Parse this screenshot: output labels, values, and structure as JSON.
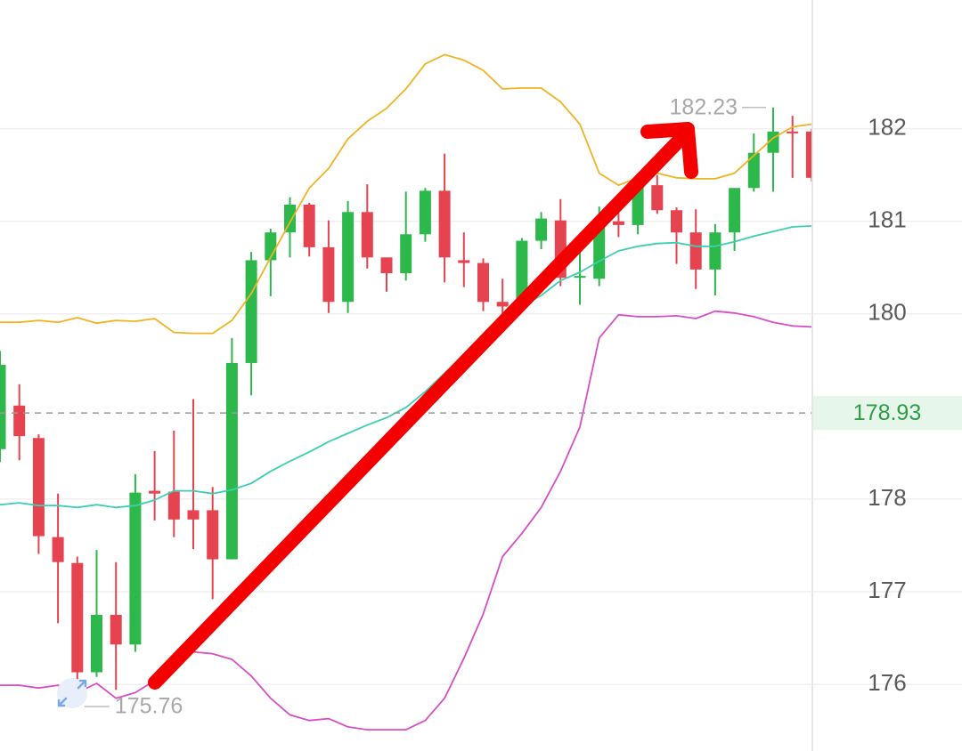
{
  "chart_data": {
    "type": "candlestick",
    "ylim": [
      175.28,
      183.39
    ],
    "yticks": [
      176,
      177,
      178,
      180,
      181,
      182
    ],
    "grid": true,
    "up_color": "#2db84c",
    "down_color": "#e5434f",
    "candles": {
      "open": [
        178.54,
        179.01,
        178.66,
        177.59,
        177.31,
        176.13,
        176.75,
        176.43,
        178.09,
        178.08,
        177.88,
        177.88,
        177.35,
        179.47,
        180.58,
        180.88,
        181.18,
        180.72,
        180.13,
        181.1,
        180.61,
        180.44,
        180.86,
        181.33,
        180.58,
        180.55,
        180.13,
        180.08,
        180.79,
        181.01,
        180.39,
        180.38,
        181.0,
        180.96,
        181.39,
        181.12,
        180.88,
        180.48,
        180.88,
        181.36,
        181.74,
        181.97,
        181.97
      ],
      "high": [
        179.6,
        179.24,
        178.7,
        178.06,
        177.38,
        177.45,
        177.32,
        178.27,
        178.52,
        178.74,
        179.08,
        178.13,
        179.74,
        180.67,
        180.92,
        181.26,
        181.2,
        181.01,
        181.22,
        181.4,
        180.61,
        181.32,
        181.36,
        181.73,
        180.88,
        180.6,
        180.38,
        180.82,
        181.1,
        181.24,
        180.7,
        181.16,
        181.13,
        181.47,
        181.5,
        181.15,
        181.13,
        180.97,
        181.36,
        181.95,
        182.23,
        182.14,
        182.0
      ],
      "low": [
        178.4,
        178.42,
        177.41,
        176.66,
        175.76,
        176.08,
        175.94,
        176.35,
        177.77,
        177.59,
        177.46,
        176.92,
        177.35,
        179.12,
        180.19,
        180.61,
        180.62,
        180.01,
        180.01,
        180.49,
        180.24,
        180.36,
        180.78,
        180.34,
        180.29,
        180.03,
        179.82,
        180.05,
        180.7,
        180.3,
        180.1,
        180.3,
        180.83,
        180.86,
        181.08,
        180.54,
        180.27,
        180.2,
        180.68,
        181.32,
        181.32,
        181.47,
        181.43
      ],
      "close": [
        179.45,
        178.68,
        177.6,
        177.32,
        176.13,
        176.75,
        176.43,
        178.07,
        178.06,
        177.78,
        177.78,
        177.35,
        179.47,
        180.58,
        180.88,
        181.18,
        180.72,
        180.13,
        181.1,
        180.61,
        180.44,
        180.86,
        181.33,
        180.61,
        180.55,
        180.13,
        180.08,
        180.79,
        181.03,
        180.39,
        180.41,
        181.0,
        180.96,
        181.43,
        181.12,
        180.88,
        180.48,
        180.88,
        181.36,
        181.74,
        181.97,
        181.95,
        181.47
      ]
    },
    "series": [
      {
        "color": "#f0b323",
        "values": [
          179.91,
          179.91,
          179.93,
          179.91,
          179.96,
          179.9,
          179.93,
          179.92,
          179.95,
          179.8,
          179.79,
          179.79,
          179.93,
          180.22,
          180.61,
          180.99,
          181.36,
          181.57,
          181.89,
          182.08,
          182.22,
          182.43,
          182.7,
          182.8,
          182.74,
          182.63,
          182.43,
          182.44,
          182.44,
          182.29,
          182.05,
          181.52,
          181.39,
          181.47,
          181.52,
          181.47,
          181.46,
          181.46,
          181.52,
          181.71,
          181.9,
          182.02,
          182.05
        ]
      },
      {
        "color": "#3ccfb2",
        "values": [
          177.94,
          177.96,
          177.93,
          177.93,
          177.91,
          177.94,
          177.91,
          177.93,
          177.99,
          178.09,
          178.09,
          178.06,
          178.1,
          178.17,
          178.3,
          178.41,
          178.51,
          178.62,
          178.71,
          178.8,
          178.88,
          178.99,
          179.16,
          179.36,
          179.55,
          179.74,
          179.91,
          180.08,
          180.2,
          180.36,
          180.45,
          180.57,
          180.68,
          180.73,
          180.76,
          180.77,
          180.73,
          180.73,
          180.78,
          180.84,
          180.89,
          180.94,
          180.95
        ]
      },
      {
        "color": "#d64fc6",
        "values": [
          175.99,
          175.99,
          175.96,
          175.99,
          175.91,
          176.01,
          175.85,
          175.91,
          176.04,
          176.28,
          176.35,
          176.33,
          176.27,
          176.09,
          175.85,
          175.67,
          175.61,
          175.63,
          175.54,
          175.51,
          175.51,
          175.51,
          175.61,
          175.85,
          176.28,
          176.76,
          177.38,
          177.63,
          177.91,
          178.3,
          178.78,
          179.74,
          179.99,
          179.97,
          179.97,
          179.98,
          179.95,
          180.03,
          180.01,
          179.97,
          179.91,
          179.87,
          179.86
        ]
      }
    ],
    "price_line": 178.93,
    "high_label": 182.23,
    "low_label": 175.76
  }
}
